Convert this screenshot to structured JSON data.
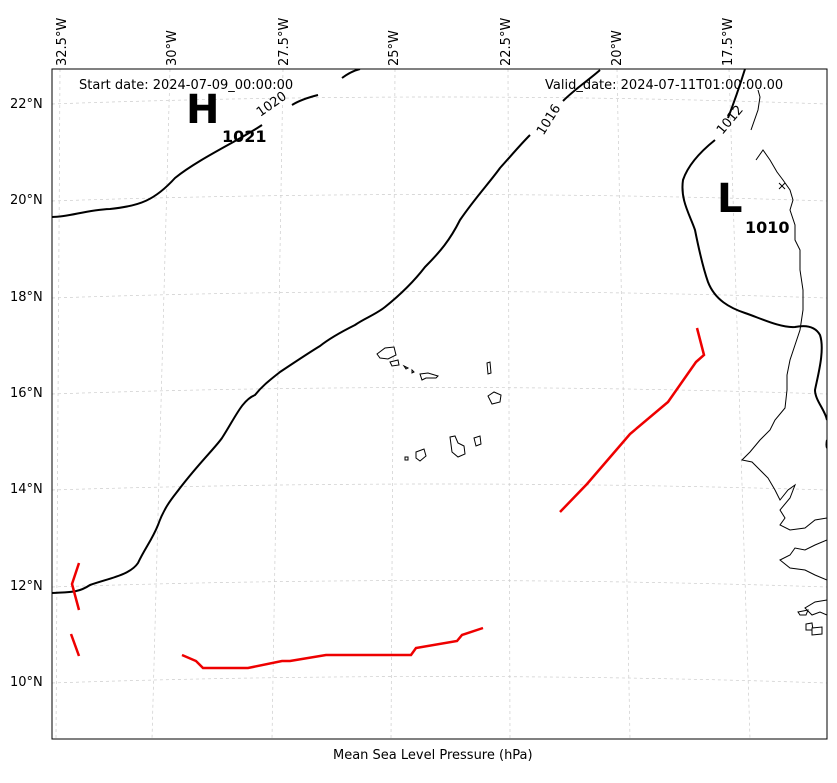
{
  "header": {
    "start_date": "Start date: 2024-07-09_00:00:00",
    "valid_date": "Valid_date: 2024-07-11T01:00:00.00"
  },
  "footer": {
    "xlabel": "Mean Sea Level Pressure (hPa)"
  },
  "axes": {
    "lon_ticks": [
      "32.5°W",
      "30°W",
      "27.5°W",
      "25°W",
      "22.5°W",
      "20°W",
      "17.5°W"
    ],
    "lat_ticks": [
      "22°N",
      "20°N",
      "18°N",
      "16°N",
      "14°N",
      "12°N",
      "10°N"
    ]
  },
  "pressure_centers": {
    "high": {
      "symbol": "H",
      "value": "1021"
    },
    "low": {
      "symbol": "L",
      "value": "1010"
    }
  },
  "isobars": {
    "labels": [
      "1020",
      "1016",
      "1012"
    ]
  },
  "colors": {
    "isobar": "#000000",
    "front": "#ee0000",
    "grid": "#cccccc",
    "coast": "#000000"
  }
}
